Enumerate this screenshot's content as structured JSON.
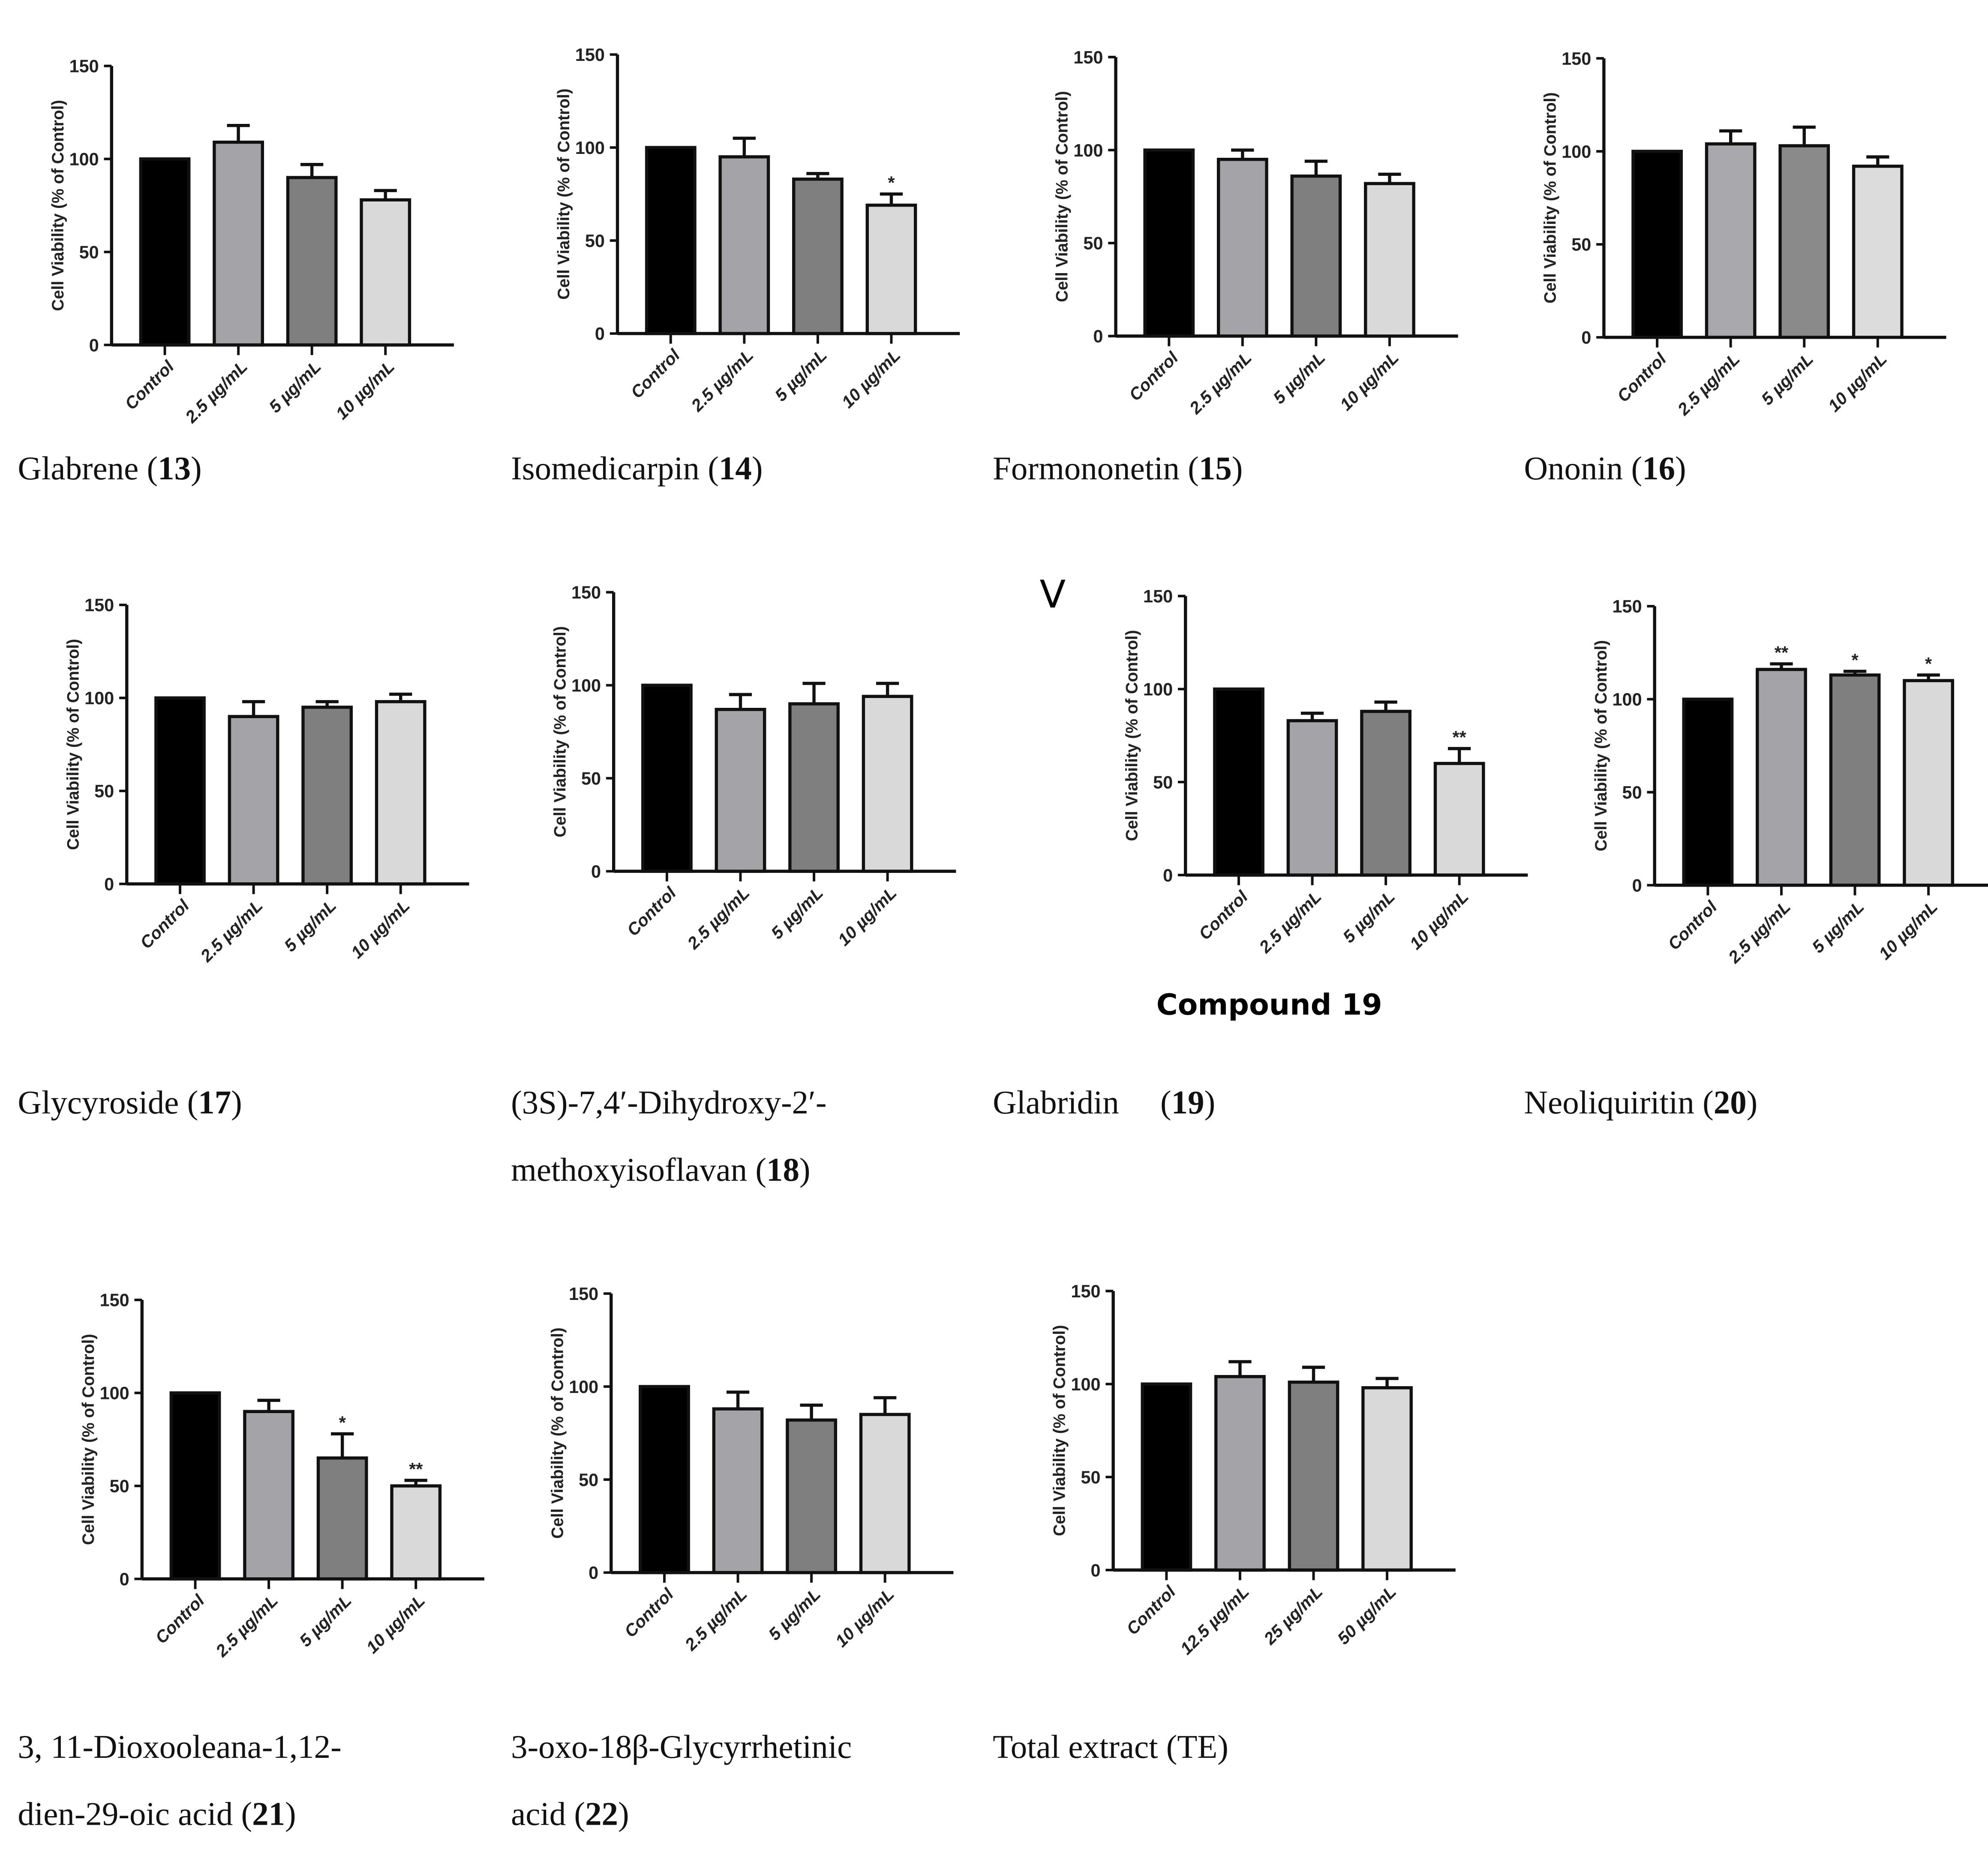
{
  "extra_labels": {
    "panel_letter": "V",
    "compound19_title": "Compound 19"
  },
  "chart_data": [
    {
      "id": "c13",
      "type": "bar",
      "title": "",
      "ylabel": "Cell Viability (% of Control)",
      "ylim": [
        0,
        150
      ],
      "yticks": [
        0,
        50,
        100,
        150
      ],
      "categories": [
        "Control",
        "2.5 µg/mL",
        "5 µg/mL",
        "10 µg/mL"
      ],
      "values": [
        100,
        109,
        90,
        78
      ],
      "errors": [
        0,
        9,
        7,
        5
      ],
      "significance": [
        "",
        "",
        "",
        ""
      ],
      "colors": [
        "#000000",
        "#a3a3a8",
        "#7f7f7f",
        "#d9d9d9"
      ],
      "caption": {
        "lines": [
          "Glabrene"
        ],
        "number": "13"
      }
    },
    {
      "id": "c14",
      "type": "bar",
      "ylabel": "Cell Viability (% of Control)",
      "ylim": [
        0,
        150
      ],
      "yticks": [
        0,
        50,
        100,
        150
      ],
      "categories": [
        "Control",
        "2.5 µg/mL",
        "5 µg/mL",
        "10 µg/mL"
      ],
      "values": [
        100,
        95,
        83,
        69
      ],
      "errors": [
        0,
        10,
        3,
        6
      ],
      "significance": [
        "",
        "",
        "",
        "*"
      ],
      "colors": [
        "#000000",
        "#a3a3a8",
        "#7f7f7f",
        "#d9d9d9"
      ],
      "caption": {
        "lines": [
          "Isomedicarpin"
        ],
        "number": "14"
      }
    },
    {
      "id": "c15",
      "type": "bar",
      "ylabel": "Cell Viability (% of Control)",
      "ylim": [
        0,
        150
      ],
      "yticks": [
        0,
        50,
        100,
        150
      ],
      "categories": [
        "Control",
        "2.5 µg/mL",
        "5 µg/mL",
        "10 µg/mL"
      ],
      "values": [
        100,
        95,
        86,
        82
      ],
      "errors": [
        0,
        5,
        8,
        5
      ],
      "significance": [
        "",
        "",
        "",
        ""
      ],
      "colors": [
        "#000000",
        "#a3a3a8",
        "#7f7f7f",
        "#d9d9d9"
      ],
      "caption": {
        "lines": [
          "Formononetin"
        ],
        "number": "15"
      }
    },
    {
      "id": "c16",
      "type": "bar",
      "ylabel": "Cell Viability (% of Control)",
      "ylim": [
        0,
        150
      ],
      "yticks": [
        0,
        50,
        100,
        150
      ],
      "categories": [
        "Control",
        "2.5 µg/mL",
        "5 µg/mL",
        "10 µg/mL"
      ],
      "values": [
        100,
        104,
        103,
        92
      ],
      "errors": [
        0,
        7,
        10,
        5
      ],
      "significance": [
        "",
        "",
        "",
        ""
      ],
      "colors": [
        "#000000",
        "#a8a8ac",
        "#8a8a8a",
        "#dcdcdc"
      ],
      "caption": {
        "lines": [
          "Ononin"
        ],
        "number": "16"
      }
    },
    {
      "id": "c17",
      "type": "bar",
      "ylabel": "Cell Viability (% of Control)",
      "ylim": [
        0,
        150
      ],
      "yticks": [
        0,
        50,
        100,
        150
      ],
      "categories": [
        "Control",
        "2.5 µg/mL",
        "5 µg/mL",
        "10 µg/mL"
      ],
      "values": [
        100,
        90,
        95,
        98
      ],
      "errors": [
        0,
        8,
        3,
        4
      ],
      "significance": [
        "",
        "",
        "",
        ""
      ],
      "colors": [
        "#000000",
        "#a3a3a8",
        "#7f7f7f",
        "#d9d9d9"
      ],
      "caption": {
        "lines": [
          "Glycyroside"
        ],
        "number": "17"
      }
    },
    {
      "id": "c18",
      "type": "bar",
      "ylabel": "Cell Viability (% of Control)",
      "ylim": [
        0,
        150
      ],
      "yticks": [
        0,
        50,
        100,
        150
      ],
      "categories": [
        "Control",
        "2.5 µg/mL",
        "5 µg/mL",
        "10 µg/mL"
      ],
      "values": [
        100,
        87,
        90,
        94
      ],
      "errors": [
        0,
        8,
        11,
        7
      ],
      "significance": [
        "",
        "",
        "",
        ""
      ],
      "colors": [
        "#000000",
        "#a3a3a8",
        "#7f7f7f",
        "#d9d9d9"
      ],
      "caption": {
        "lines": [
          "(3S)-7,4′-Dihydroxy-2′-",
          "methoxyisoflavan"
        ],
        "number": "18"
      }
    },
    {
      "id": "c19",
      "type": "bar",
      "ylabel": "Cell Viability (% of Control)",
      "ylim": [
        0,
        150
      ],
      "yticks": [
        0,
        50,
        100,
        150
      ],
      "categories": [
        "Control",
        "2.5 µg/mL",
        "5 µg/mL",
        "10 µg/mL"
      ],
      "values": [
        100,
        83,
        88,
        60
      ],
      "errors": [
        0,
        4,
        5,
        8
      ],
      "significance": [
        "",
        "",
        "",
        "**"
      ],
      "colors": [
        "#000000",
        "#a3a3a8",
        "#7f7f7f",
        "#d9d9d9"
      ],
      "caption": {
        "lines": [
          "Glabridin    "
        ],
        "number": "19"
      }
    },
    {
      "id": "c20",
      "type": "bar",
      "ylabel": "Cell Viability (% of Control)",
      "ylim": [
        0,
        150
      ],
      "yticks": [
        0,
        50,
        100,
        150
      ],
      "categories": [
        "Control",
        "2.5 µg/mL",
        "5 µg/mL",
        "10 µg/mL"
      ],
      "values": [
        100,
        116,
        113,
        110
      ],
      "errors": [
        0,
        3,
        2,
        3
      ],
      "significance": [
        "",
        "**",
        "*",
        "*"
      ],
      "colors": [
        "#000000",
        "#a3a3a8",
        "#7f7f7f",
        "#d9d9d9"
      ],
      "caption": {
        "lines": [
          "Neoliquiritin"
        ],
        "number": "20"
      }
    },
    {
      "id": "c21",
      "type": "bar",
      "ylabel": "Cell Viability (% of Control)",
      "ylim": [
        0,
        150
      ],
      "yticks": [
        0,
        50,
        100,
        150
      ],
      "categories": [
        "Control",
        "2.5 µg/mL",
        "5 µg/mL",
        "10 µg/mL"
      ],
      "values": [
        100,
        90,
        65,
        50
      ],
      "errors": [
        0,
        6,
        13,
        3
      ],
      "significance": [
        "",
        "",
        "*",
        "**"
      ],
      "colors": [
        "#000000",
        "#a3a3a8",
        "#7f7f7f",
        "#d9d9d9"
      ],
      "caption": {
        "lines": [
          "3, 11-Dioxooleana-1,12-",
          "dien-29-oic acid"
        ],
        "number": "21"
      }
    },
    {
      "id": "c22",
      "type": "bar",
      "ylabel": "Cell Viability (% of Control)",
      "ylim": [
        0,
        150
      ],
      "yticks": [
        0,
        50,
        100,
        150
      ],
      "categories": [
        "Control",
        "2.5 µg/mL",
        "5 µg/mL",
        "10 µg/mL"
      ],
      "values": [
        100,
        88,
        82,
        85
      ],
      "errors": [
        0,
        9,
        8,
        9
      ],
      "significance": [
        "",
        "",
        "",
        ""
      ],
      "colors": [
        "#000000",
        "#a3a3a8",
        "#7f7f7f",
        "#d9d9d9"
      ],
      "caption": {
        "lines": [
          "3-oxo-18β-Glycyrrhetinic",
          "acid"
        ],
        "number": "22"
      }
    },
    {
      "id": "cTE",
      "type": "bar",
      "ylabel": "Cell Viability (% of Control)",
      "ylim": [
        0,
        150
      ],
      "yticks": [
        0,
        50,
        100,
        150
      ],
      "categories": [
        "Control",
        "12.5 µg/mL",
        "25 µg/mL",
        "50 µg/mL"
      ],
      "values": [
        100,
        104,
        101,
        98
      ],
      "errors": [
        0,
        8,
        8,
        5
      ],
      "significance": [
        "",
        "",
        "",
        ""
      ],
      "colors": [
        "#000000",
        "#a3a3a8",
        "#7f7f7f",
        "#d9d9d9"
      ],
      "caption": {
        "lines": [
          "Total extract (TE)"
        ],
        "number": ""
      }
    }
  ]
}
